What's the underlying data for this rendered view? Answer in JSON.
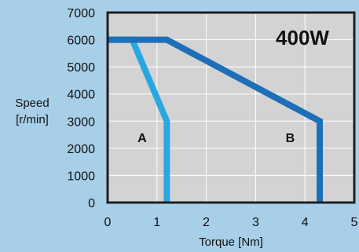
{
  "chart_data": {
    "type": "line",
    "power_label": "400W",
    "xlabel": "Torque [Nm]",
    "ylabel_lines": [
      "Speed",
      "[r/min]"
    ],
    "xlim": [
      0,
      5
    ],
    "ylim": [
      0,
      7000
    ],
    "x_ticks": [
      0,
      1,
      2,
      3,
      4,
      5
    ],
    "y_ticks": [
      0,
      1000,
      2000,
      3000,
      4000,
      5000,
      6000,
      7000
    ],
    "x_tick_labels": [
      "0",
      "1",
      "2",
      "3",
      "4",
      "5"
    ],
    "y_tick_labels": [
      "0",
      "1000",
      "2000",
      "3000",
      "4000",
      "5000",
      "6000",
      "7000"
    ],
    "grid": true,
    "series": [
      {
        "color": "#29a8e0",
        "points": [
          [
            0,
            6000
          ],
          [
            0.5,
            6000
          ],
          [
            1.2,
            3000
          ],
          [
            1.2,
            0
          ]
        ]
      },
      {
        "color": "#1d6fb8",
        "points": [
          [
            0,
            6000
          ],
          [
            1.2,
            6000
          ],
          [
            4.3,
            3000
          ],
          [
            4.3,
            0
          ]
        ]
      }
    ],
    "region_labels": [
      {
        "text": "A",
        "x": 0.7,
        "y": 2400
      },
      {
        "text": "B",
        "x": 3.7,
        "y": 2400
      }
    ]
  },
  "colors": {
    "page_background": "#a8cfe8",
    "plot_background": "#d3d3d3",
    "grid": "#ffffff",
    "frame": "#1f1f1f"
  }
}
